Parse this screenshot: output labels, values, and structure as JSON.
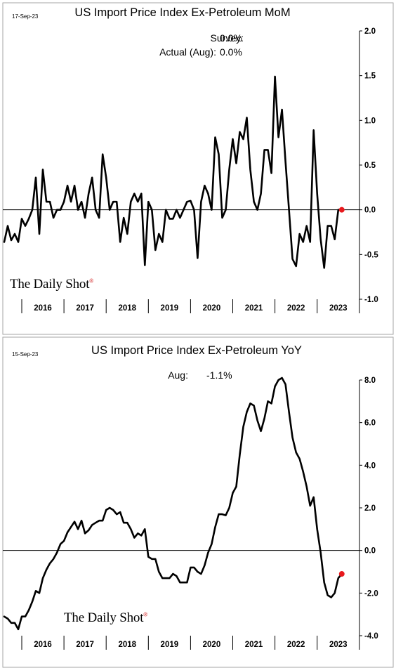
{
  "charts": [
    {
      "date_stamp": "17-Sep-23",
      "title": "US Import Price Index Ex-Petroleum MoM",
      "annotation_lines": [
        {
          "label": "Survey:",
          "value": "0.0%"
        },
        {
          "label": "Actual (Aug):",
          "value": "0.0%"
        }
      ],
      "brand": "The Daily Shot",
      "brand_mark": "®",
      "colors": {
        "line": "#000000",
        "last_point": "#e8191d",
        "zero_line": "#000000",
        "frame": "#a6a6a6"
      }
    },
    {
      "date_stamp": "15-Sep-23",
      "title": "US Import Price Index Ex-Petroleum YoY",
      "annotation_lines": [
        {
          "label": "Aug:",
          "value": "-1.1%"
        }
      ],
      "brand": "The Daily Shot",
      "brand_mark": "®",
      "colors": {
        "line": "#000000",
        "last_point": "#e8191d",
        "zero_line": "#000000",
        "frame": "#a6a6a6"
      }
    }
  ],
  "chart_data": [
    {
      "type": "line",
      "title": "US Import Price Index Ex-Petroleum MoM",
      "x_start": "2015-08",
      "x_end": "2023-08",
      "x_tick_labels": [
        "2016",
        "2017",
        "2018",
        "2019",
        "2020",
        "2021",
        "2022",
        "2023"
      ],
      "y_tick_labels": [
        "2.0",
        "1.5",
        "1.0",
        "0.5",
        "0.0",
        "-0.5",
        "-1.0"
      ],
      "ylim": [
        -1.0,
        2.0
      ],
      "zero_line": true,
      "grid": false,
      "series": [
        {
          "values": [
            -0.36,
            -0.18,
            -0.34,
            -0.27,
            -0.36,
            -0.1,
            -0.18,
            -0.1,
            0.0,
            0.36,
            -0.27,
            0.45,
            0.09,
            0.09,
            -0.09,
            0.0,
            0.0,
            0.09,
            0.27,
            0.09,
            0.27,
            0.0,
            0.09,
            -0.09,
            0.18,
            0.36,
            0.0,
            -0.09,
            0.62,
            0.36,
            0.0,
            0.09,
            0.09,
            -0.36,
            -0.09,
            -0.27,
            0.09,
            0.18,
            0.09,
            0.18,
            -0.62,
            0.09,
            0.0,
            -0.45,
            -0.27,
            -0.36,
            0.0,
            -0.1,
            -0.1,
            0.0,
            -0.09,
            0.0,
            0.09,
            0.1,
            0.0,
            -0.54,
            0.09,
            0.27,
            0.18,
            0.0,
            0.81,
            0.62,
            -0.09,
            0.0,
            0.45,
            0.79,
            0.52,
            0.87,
            0.79,
            1.03,
            0.45,
            0.09,
            0.0,
            0.18,
            0.67,
            0.67,
            0.41,
            1.49,
            0.81,
            1.12,
            0.54,
            0.0,
            -0.55,
            -0.63,
            -0.27,
            -0.36,
            -0.18,
            -0.36,
            0.89,
            0.18,
            -0.33,
            -0.65,
            -0.18,
            -0.18,
            -0.33,
            0.0,
            0.0
          ]
        }
      ],
      "last_point": {
        "x": "Aug 2023",
        "value": 0.0
      }
    },
    {
      "type": "line",
      "title": "US Import Price Index Ex-Petroleum YoY",
      "x_start": "2015-08",
      "x_end": "2023-08",
      "x_tick_labels": [
        "2016",
        "2017",
        "2018",
        "2019",
        "2020",
        "2021",
        "2022",
        "2023"
      ],
      "y_tick_labels": [
        "8.0",
        "6.0",
        "4.0",
        "2.0",
        "0.0",
        "-2.0",
        "-4.0"
      ],
      "ylim": [
        -4.0,
        8.0
      ],
      "zero_line": true,
      "grid": false,
      "series": [
        {
          "values": [
            -3.1,
            -3.2,
            -3.4,
            -3.4,
            -3.7,
            -3.1,
            -3.1,
            -2.8,
            -2.4,
            -1.9,
            -2.0,
            -1.3,
            -0.9,
            -0.6,
            -0.4,
            -0.1,
            0.3,
            0.45,
            0.85,
            1.1,
            1.35,
            1.0,
            1.4,
            0.8,
            0.95,
            1.2,
            1.3,
            1.4,
            1.4,
            1.9,
            2.0,
            1.9,
            1.7,
            1.8,
            1.3,
            1.3,
            1.0,
            0.6,
            0.8,
            0.7,
            1.0,
            -0.3,
            -0.4,
            -0.4,
            -1.0,
            -1.3,
            -1.3,
            -1.3,
            -1.1,
            -1.2,
            -1.5,
            -1.5,
            -1.5,
            -0.8,
            -0.8,
            -1.0,
            -1.1,
            -0.7,
            -0.1,
            0.3,
            1.1,
            1.7,
            1.7,
            1.65,
            2.0,
            2.7,
            3.0,
            4.5,
            5.8,
            6.5,
            6.9,
            6.8,
            6.1,
            5.6,
            6.2,
            7.0,
            6.9,
            7.7,
            8.0,
            8.1,
            7.8,
            6.5,
            5.3,
            4.6,
            4.3,
            3.7,
            3.0,
            2.1,
            2.5,
            1.0,
            -0.1,
            -1.5,
            -2.1,
            -2.2,
            -2.0,
            -1.3,
            -1.1
          ]
        }
      ],
      "last_point": {
        "x": "Aug 2023",
        "value": -1.1
      }
    }
  ]
}
